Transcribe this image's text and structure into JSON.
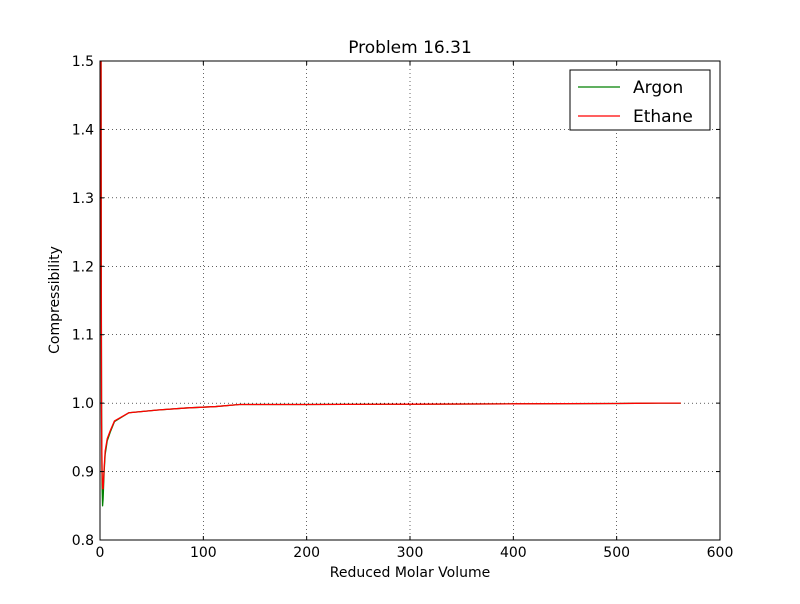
{
  "chart_data": {
    "type": "line",
    "title": "Problem 16.31",
    "xlabel": "Reduced Molar Volume",
    "ylabel": "Compressibility",
    "xlim": [
      0,
      600
    ],
    "ylim": [
      0.8,
      1.5
    ],
    "xticks": [
      "0",
      "100",
      "200",
      "300",
      "400",
      "500",
      "600"
    ],
    "yticks": [
      "0.8",
      "0.9",
      "1.0",
      "1.1",
      "1.2",
      "1.3",
      "1.4",
      "1.5"
    ],
    "grid": true,
    "legend": "top-right",
    "series": [
      {
        "name": "Argon",
        "color": "#008000",
        "x": [
          1.0,
          1.2,
          1.5,
          2.0,
          2.5,
          3.0,
          4.0,
          5.0,
          7.0,
          10.0,
          14.0,
          28.0,
          56.0,
          84.0,
          112.0,
          135.0,
          200.0,
          300.0,
          400.0,
          500.0,
          540.0,
          562.0
        ],
        "y": [
          1.5,
          1.25,
          1.0,
          0.88,
          0.85,
          0.86,
          0.9,
          0.925,
          0.945,
          0.958,
          0.973,
          0.986,
          0.99,
          0.993,
          0.995,
          0.998,
          0.998,
          0.9985,
          0.999,
          0.9995,
          1.0,
          1.0
        ]
      },
      {
        "name": "Ethane",
        "color": "#ff0000",
        "x": [
          1.0,
          1.2,
          1.5,
          2.0,
          2.5,
          3.0,
          4.0,
          5.0,
          7.0,
          10.0,
          14.0,
          28.0,
          56.0,
          84.0,
          112.0,
          135.0,
          200.0,
          300.0,
          400.0,
          500.0,
          540.0,
          562.0
        ],
        "y": [
          1.5,
          1.2,
          0.97,
          0.9,
          0.875,
          0.875,
          0.905,
          0.93,
          0.948,
          0.96,
          0.974,
          0.986,
          0.99,
          0.993,
          0.995,
          0.998,
          0.998,
          0.9985,
          0.999,
          0.9995,
          1.0,
          1.0
        ]
      }
    ]
  }
}
